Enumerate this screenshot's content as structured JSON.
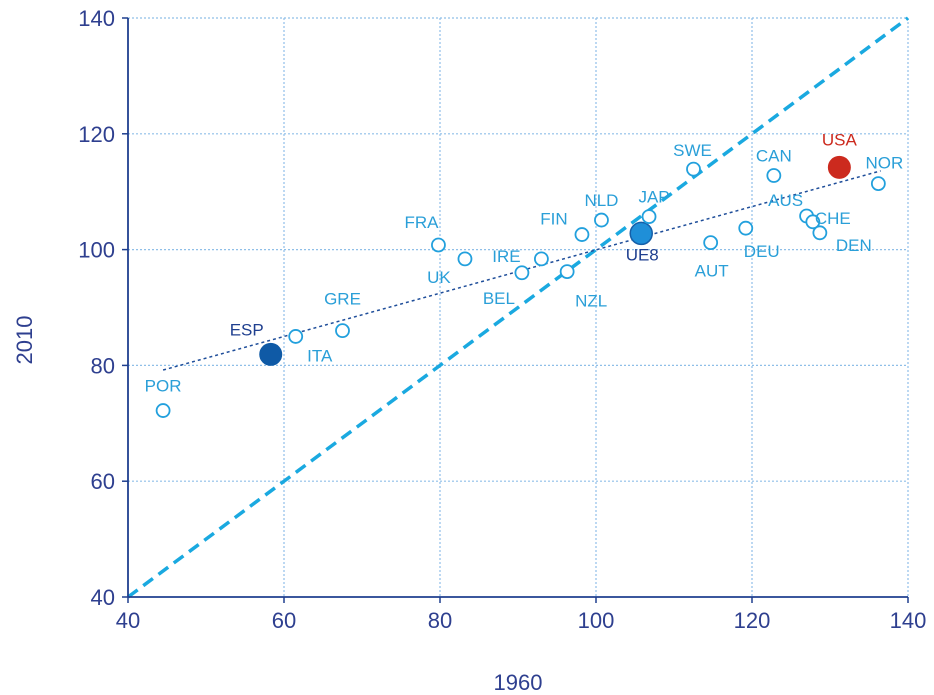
{
  "colors": {
    "axis": "#1f3f8f",
    "grid": "#8fbfe8",
    "diagonal": "#1aa9e0",
    "trend": "#1f4e9a",
    "open_point": "#22a0dd",
    "label": "#2a9fd8",
    "esp": "#0f5aa6",
    "ue8": "#1f8fd8",
    "usa": "#cc2a1e"
  },
  "chart_data": {
    "type": "scatter",
    "xlabel": "1960",
    "ylabel": "2010",
    "xlim": [
      40,
      140
    ],
    "ylim": [
      40,
      140
    ],
    "xticks": [
      40,
      60,
      80,
      100,
      120,
      140
    ],
    "yticks": [
      40,
      60,
      80,
      100,
      120,
      140
    ],
    "grid": true,
    "points": [
      {
        "label": "POR",
        "x": 44.5,
        "y": 72.2,
        "style": "open"
      },
      {
        "label": "ESP",
        "x": 58.3,
        "y": 81.9,
        "style": "esp"
      },
      {
        "label": "ITA",
        "x": 61.5,
        "y": 85.0,
        "style": "open"
      },
      {
        "label": "GRE",
        "x": 67.5,
        "y": 86.0,
        "style": "open"
      },
      {
        "label": "FRA",
        "x": 79.8,
        "y": 100.8,
        "style": "open"
      },
      {
        "label": "UK",
        "x": 83.2,
        "y": 98.4,
        "style": "open"
      },
      {
        "label": "BEL",
        "x": 90.5,
        "y": 96.0,
        "style": "open"
      },
      {
        "label": "IRE",
        "x": 93.0,
        "y": 98.4,
        "style": "open"
      },
      {
        "label": "NZL",
        "x": 96.3,
        "y": 96.2,
        "style": "open"
      },
      {
        "label": "FIN",
        "x": 98.2,
        "y": 102.6,
        "style": "open"
      },
      {
        "label": "NLD",
        "x": 100.7,
        "y": 105.1,
        "style": "open"
      },
      {
        "label": "UE8",
        "x": 105.8,
        "y": 102.8,
        "style": "ue8"
      },
      {
        "label": "JAP",
        "x": 106.8,
        "y": 105.7,
        "style": "open"
      },
      {
        "label": "SWE",
        "x": 112.5,
        "y": 113.9,
        "style": "open"
      },
      {
        "label": "AUT",
        "x": 114.7,
        "y": 101.2,
        "style": "open"
      },
      {
        "label": "DEU",
        "x": 119.2,
        "y": 103.7,
        "style": "open"
      },
      {
        "label": "CAN",
        "x": 122.8,
        "y": 112.8,
        "style": "open"
      },
      {
        "label": "AUS",
        "x": 127.0,
        "y": 105.8,
        "style": "open"
      },
      {
        "label": "CHE",
        "x": 127.8,
        "y": 104.8,
        "style": "open"
      },
      {
        "label": "DEN",
        "x": 128.7,
        "y": 102.9,
        "style": "open"
      },
      {
        "label": "USA",
        "x": 131.2,
        "y": 114.2,
        "style": "usa"
      },
      {
        "label": "NOR",
        "x": 136.2,
        "y": 111.4,
        "style": "open"
      }
    ],
    "diagonal_line": {
      "x": [
        40,
        140
      ],
      "y": [
        40,
        140
      ]
    },
    "trend_line": {
      "x": [
        44.5,
        136.5
      ],
      "y": [
        79.2,
        113.6
      ]
    }
  }
}
